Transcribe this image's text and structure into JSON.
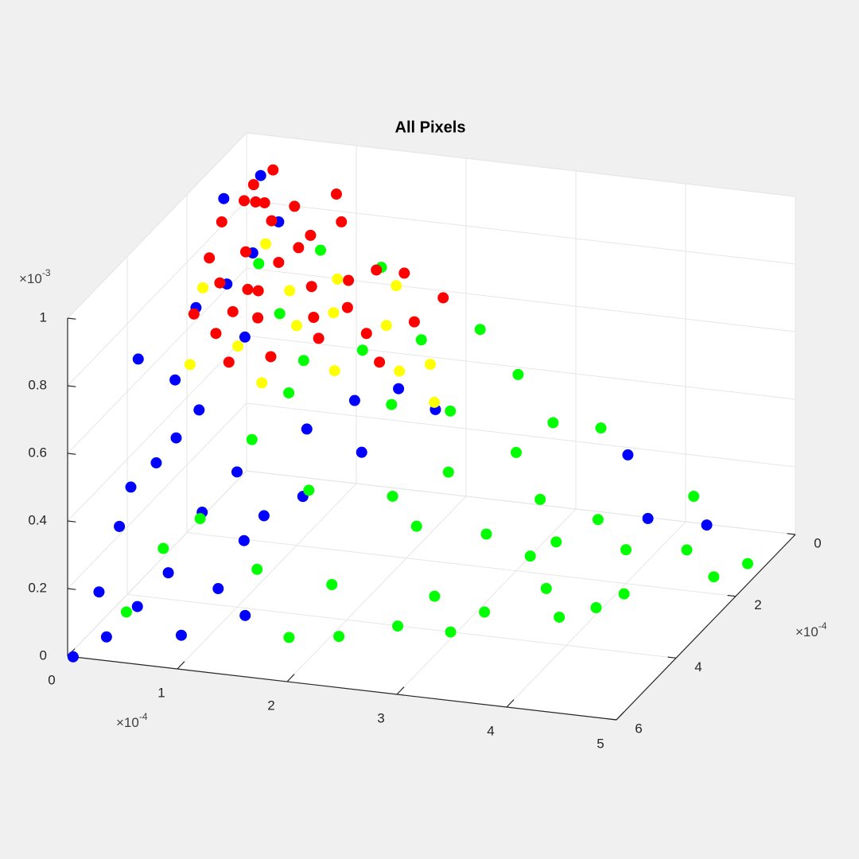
{
  "chart_data": {
    "type": "scatter3",
    "title": "All Pixels",
    "xlim": [
      0,
      5
    ],
    "ylim": [
      0,
      6
    ],
    "zlim": [
      0,
      1
    ],
    "xticks": [
      0,
      1,
      2,
      3,
      4,
      5
    ],
    "yticks": [
      0,
      2,
      4,
      6
    ],
    "zticks": [
      0,
      0.2,
      0.4,
      0.6,
      0.8,
      1
    ],
    "x_exponent": {
      "base": "×10",
      "power": "-4"
    },
    "y_exponent": {
      "base": "×10",
      "power": "-4"
    },
    "z_exponent": {
      "base": "×10",
      "power": "-3"
    },
    "grid": true,
    "series": [
      {
        "color": "#0000ff",
        "x": [
          0.05,
          0.3,
          0.5,
          0.2,
          0.4,
          0.7,
          0.9,
          0.3,
          0.6,
          1.0,
          1.2,
          0.8,
          0.5,
          1.5,
          1.3,
          0.2,
          0.4,
          0.6,
          1.8,
          2.0,
          1.1,
          0.1,
          0.3,
          0.15,
          0.5,
          0.9,
          1.4,
          2.4,
          1.6,
          0.25,
          4.6,
          3.8,
          4.2,
          0.7,
          2.2
        ],
        "y": [
          6,
          5.8,
          5.5,
          5.0,
          4.5,
          5.2,
          4.8,
          3.5,
          3.8,
          4.0,
          4.5,
          3.0,
          2.5,
          3.5,
          4.2,
          1.5,
          1.0,
          2.0,
          3.0,
          3.5,
          5.0,
          4.0,
          2.8,
          5.5,
          4.2,
          5.5,
          5.2,
          2.5,
          4.0,
          4.8,
          1.5,
          1.2,
          2.0,
          1.5,
          3.0
        ],
        "z": [
          0,
          0.05,
          0.12,
          0.3,
          0.45,
          0.2,
          0.35,
          0.6,
          0.55,
          0.4,
          0.25,
          0.7,
          0.8,
          0.5,
          0.3,
          0.95,
          0.98,
          0.85,
          0.55,
          0.45,
          0.15,
          0.7,
          0.75,
          0.15,
          0.5,
          0.05,
          0.1,
          0.5,
          0.35,
          0.4,
          0.15,
          0.3,
          0.2,
          0.9,
          0.6
        ]
      },
      {
        "color": "#00ff00",
        "x": [
          3.0,
          3.5,
          4.0,
          4.5,
          2.5,
          2.8,
          3.2,
          2.0,
          2.2,
          3.6,
          4.2,
          3.8,
          2.6,
          3.0,
          2.4,
          2.0,
          1.6,
          1.2,
          1.0,
          0.8,
          0.6,
          0.4,
          1.4,
          1.8,
          2.6,
          3.4,
          4.0,
          4.8,
          5.0,
          3.2,
          2.8,
          2.0,
          1.5,
          1.0,
          0.6,
          3.5,
          4.4,
          2.2,
          1.6,
          3.0,
          3.8,
          2.4,
          1.2,
          0.9,
          3.3
        ],
        "y": [
          3.0,
          2.5,
          2.0,
          1.8,
          3.5,
          4.0,
          3.8,
          4.5,
          5.0,
          3.2,
          2.8,
          2.2,
          2.8,
          2.0,
          2.0,
          2.5,
          2.0,
          2.5,
          3.5,
          4.5,
          5.0,
          5.5,
          4.8,
          5.2,
          4.5,
          3.0,
          3.0,
          2.0,
          1.6,
          1.5,
          1.2,
          1.5,
          1.0,
          1.2,
          1.8,
          1.0,
          1.2,
          3.2,
          3.8,
          4.2,
          3.5,
          1.0,
          3.0,
          2.2,
          2.3
        ],
        "z": [
          0.2,
          0.15,
          0.1,
          0.1,
          0.25,
          0.1,
          0.05,
          0.15,
          0.05,
          0.08,
          0.05,
          0.2,
          0.35,
          0.35,
          0.45,
          0.5,
          0.6,
          0.6,
          0.45,
          0.3,
          0.25,
          0.1,
          0.2,
          0.05,
          0.05,
          0.15,
          0.02,
          0.05,
          0.06,
          0.4,
          0.5,
          0.6,
          0.75,
          0.8,
          0.8,
          0.35,
          0.2,
          0.3,
          0.35,
          0.02,
          0.03,
          0.6,
          0.55,
          0.7,
          0.25
        ]
      },
      {
        "color": "#ff0000",
        "x": [
          0.2,
          0.3,
          0.5,
          0.4,
          0.6,
          0.8,
          0.3,
          0.5,
          0.7,
          1.0,
          1.2,
          1.4,
          1.6,
          1.0,
          0.9,
          0.2,
          0.4,
          0.6,
          0.9,
          1.2,
          1.5,
          1.8,
          0.1,
          0.15,
          0.7,
          1.1,
          0.35,
          0.8,
          1.3,
          0.5,
          1.7,
          0.25,
          0.3,
          1.9,
          0.65
        ],
        "y": [
          0.5,
          0.8,
          1.0,
          1.5,
          0.6,
          1.2,
          2.0,
          1.8,
          2.2,
          1.5,
          1.0,
          0.8,
          0.6,
          0.5,
          0.3,
          2.5,
          2.5,
          2.8,
          2.5,
          2.0,
          1.5,
          1.0,
          1.2,
          1.8,
          1.5,
          1.8,
          0.4,
          0.8,
          1.4,
          2.3,
          1.8,
          1.0,
          0.5,
          0.4,
          2.0
        ],
        "z": [
          0.9,
          0.88,
          0.85,
          0.8,
          0.86,
          0.8,
          0.75,
          0.72,
          0.68,
          0.72,
          0.7,
          0.72,
          0.7,
          0.82,
          0.88,
          0.7,
          0.65,
          0.6,
          0.6,
          0.62,
          0.6,
          0.6,
          0.85,
          0.8,
          0.78,
          0.66,
          0.94,
          0.8,
          0.66,
          0.7,
          0.55,
          0.9,
          0.85,
          0.62,
          0.74
        ]
      },
      {
        "color": "#ffff00",
        "x": [
          0.8,
          1.0,
          1.2,
          0.6,
          1.4,
          1.6,
          0.3,
          1.8,
          0.5,
          1.1,
          2.0,
          0.9,
          1.5,
          0.2,
          2.2
        ],
        "y": [
          1.5,
          2.0,
          1.5,
          2.5,
          2.2,
          1.2,
          3.0,
          1.5,
          1.2,
          1.0,
          1.2,
          2.8,
          0.5,
          2.2,
          1.8
        ],
        "z": [
          0.7,
          0.65,
          0.65,
          0.62,
          0.55,
          0.6,
          0.6,
          0.5,
          0.8,
          0.7,
          0.5,
          0.55,
          0.65,
          0.75,
          0.45
        ]
      }
    ]
  }
}
